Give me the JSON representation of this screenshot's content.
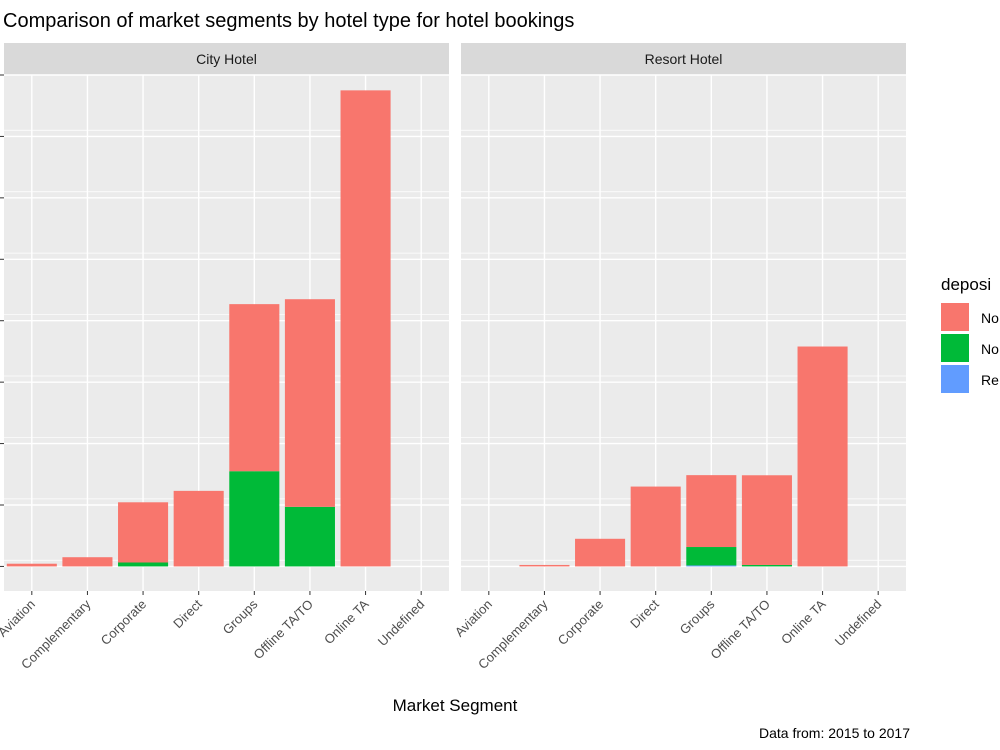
{
  "chart_data": {
    "type": "bar",
    "stacked": true,
    "title": "Comparison of market segments by hotel type for hotel bookings",
    "xlabel": "Market Segment",
    "ylabel": "",
    "caption": "Data from: 2015 to 2017",
    "legend": {
      "title": "deposi",
      "placement": "right",
      "entries": [
        {
          "label": "No",
          "color": "#F8766D"
        },
        {
          "label": "No",
          "color": "#00BA38"
        },
        {
          "label": "Re",
          "color": "#619CFF"
        }
      ]
    },
    "categories": [
      "Aviation",
      "Complementary",
      "Corporate",
      "Direct",
      "Groups",
      "Offline TA/TO",
      "Online TA",
      "Undefined"
    ],
    "ylim": [
      -200,
      4000
    ],
    "grid": true,
    "facets": [
      {
        "name": "City Hotel",
        "series": [
          {
            "values": [
              22,
              75,
              490,
              615,
              1360,
              1690,
              3875,
              0
            ],
            "color": "#F8766D"
          },
          {
            "values": [
              0,
              0,
              32,
              0,
              775,
              485,
              0,
              0
            ],
            "color": "#00BA38"
          },
          {
            "values": [
              0,
              0,
              0,
              0,
              0,
              0,
              0,
              0
            ],
            "color": "#619CFF"
          }
        ]
      },
      {
        "name": "Resort Hotel",
        "series": [
          {
            "values": [
              0,
              12,
              225,
              650,
              585,
              730,
              1790,
              0
            ],
            "color": "#F8766D"
          },
          {
            "values": [
              0,
              0,
              0,
              0,
              150,
              12,
              0,
              0
            ],
            "color": "#00BA38"
          },
          {
            "values": [
              0,
              0,
              0,
              0,
              8,
              0,
              0,
              0
            ],
            "color": "#619CFF"
          }
        ]
      }
    ]
  }
}
